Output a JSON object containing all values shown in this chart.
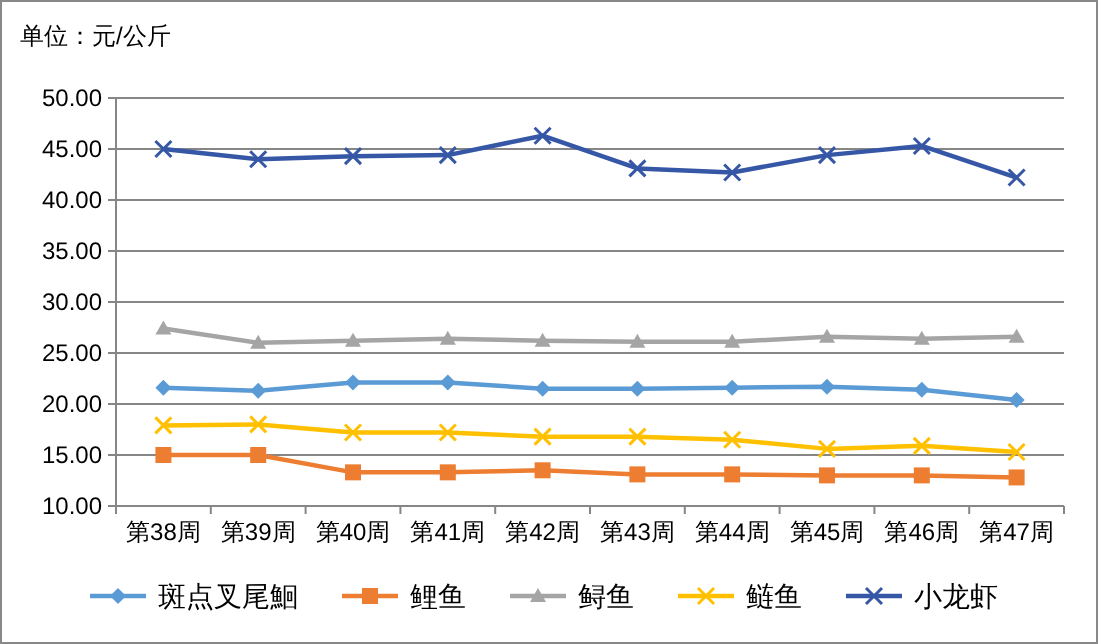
{
  "chart_data": {
    "type": "line",
    "ylabel": "单位：元/公斤",
    "categories": [
      "第38周",
      "第39周",
      "第40周",
      "第41周",
      "第42周",
      "第43周",
      "第44周",
      "第45周",
      "第46周",
      "第47周"
    ],
    "ylim": [
      10,
      50
    ],
    "yticks": [
      {
        "value": 10,
        "label": "10.00"
      },
      {
        "value": 15,
        "label": "15.00"
      },
      {
        "value": 20,
        "label": "20.00"
      },
      {
        "value": 25,
        "label": "25.00"
      },
      {
        "value": 30,
        "label": "30.00"
      },
      {
        "value": 35,
        "label": "35.00"
      },
      {
        "value": 40,
        "label": "40.00"
      },
      {
        "value": 45,
        "label": "45.00"
      },
      {
        "value": 50,
        "label": "50.00"
      }
    ],
    "grid": "y",
    "legend": "bottom",
    "series": [
      {
        "name": "斑点叉尾鮰",
        "color": "#5b9bd5",
        "marker": "diamond",
        "values": [
          21.6,
          21.3,
          22.1,
          22.1,
          21.5,
          21.5,
          21.6,
          21.7,
          21.4,
          20.4
        ]
      },
      {
        "name": "鲤鱼",
        "color": "#ed7d31",
        "marker": "square",
        "values": [
          15.0,
          15.0,
          13.3,
          13.3,
          13.5,
          13.1,
          13.1,
          13.0,
          13.0,
          12.8
        ]
      },
      {
        "name": "鲟鱼",
        "color": "#a5a5a5",
        "marker": "triangle",
        "values": [
          27.4,
          26.0,
          26.2,
          26.4,
          26.2,
          26.1,
          26.1,
          26.6,
          26.4,
          26.6
        ]
      },
      {
        "name": "鲢鱼",
        "color": "#ffc000",
        "marker": "cross",
        "values": [
          17.9,
          18.0,
          17.2,
          17.2,
          16.8,
          16.8,
          16.5,
          15.6,
          15.9,
          15.3
        ]
      },
      {
        "name": "小龙虾",
        "color": "#3557a6",
        "marker": "cross",
        "values": [
          45.0,
          44.0,
          44.3,
          44.4,
          46.3,
          43.1,
          42.7,
          44.4,
          45.3,
          42.2
        ]
      }
    ]
  }
}
